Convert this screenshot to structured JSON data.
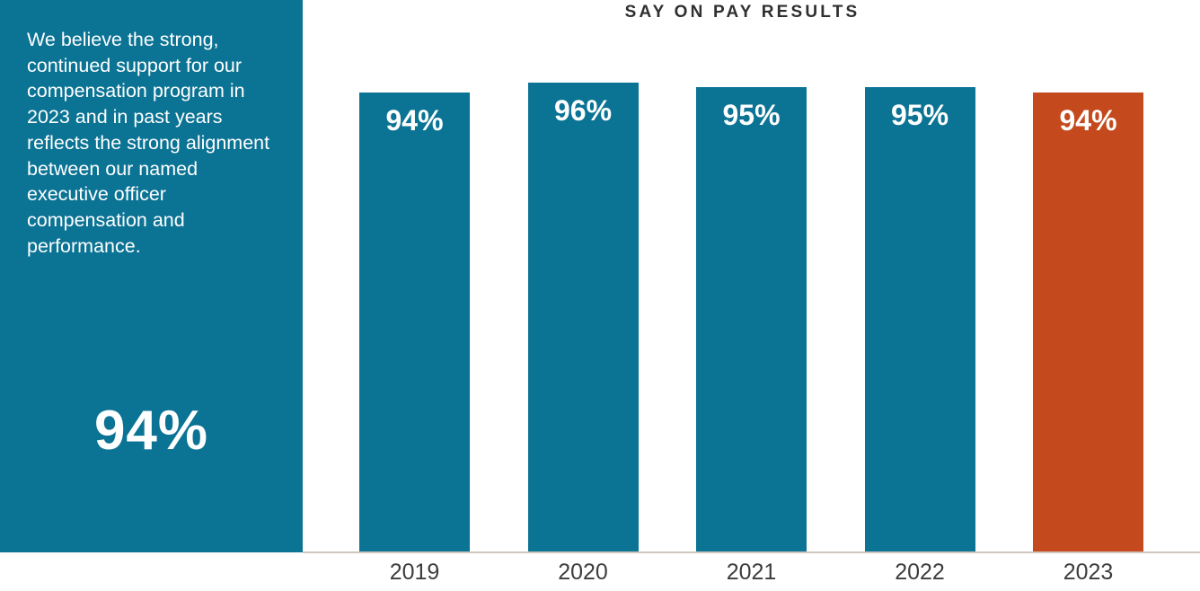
{
  "panel": {
    "paragraph": "We believe the strong, continued support for our compensation program in 2023 and in past years reflects the strong alignment between our named executive officer compensation and performance.",
    "stat": "94%"
  },
  "chart_data": {
    "type": "bar",
    "title": "SAY ON PAY RESULTS",
    "categories": [
      "2019",
      "2020",
      "2021",
      "2022",
      "2023"
    ],
    "values": [
      94,
      96,
      95,
      95,
      94
    ],
    "labels": [
      "94%",
      "96%",
      "95%",
      "95%",
      "94%"
    ],
    "xlabel": "",
    "ylabel": "",
    "ylim": [
      0,
      100
    ],
    "grid": false,
    "legend": "none",
    "bar_color": "#0b7394",
    "highlight_color": "#c44a1d",
    "highlight_index": 4,
    "value_label_color": "#ffffff"
  },
  "colors": {
    "panel_bg": "#0b7394",
    "title_text": "#2f2f2f",
    "axis_line": "#cfc5bd",
    "axis_tick_text": "#3d3d3d"
  }
}
